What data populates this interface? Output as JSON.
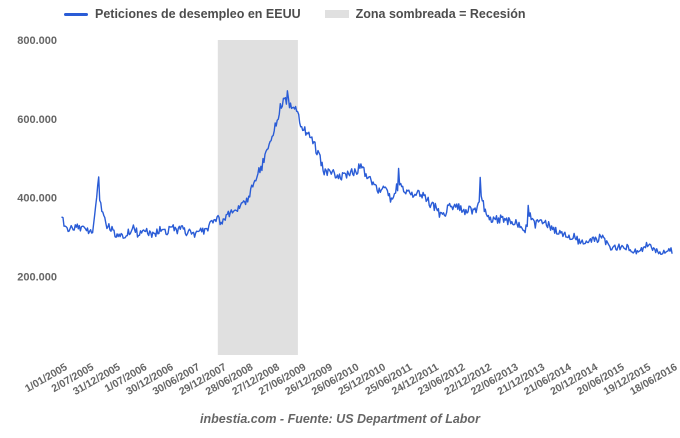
{
  "chart_data": {
    "type": "line",
    "title": "",
    "grid": "off",
    "legend_position": "top",
    "source": "inbestia.com - Fuente: US Department of Labor",
    "y_axis": {
      "min": 0,
      "max": 800000,
      "tick_values": [
        200000,
        400000,
        600000,
        800000
      ],
      "tick_labels": [
        "200.000",
        "400.000",
        "600.000",
        "800.000"
      ]
    },
    "x_axis": {
      "start_date": "1/01/2005",
      "end_date": "18/06/2016",
      "tick_interval_weeks": 26,
      "tick_labels": [
        "1/01/2005",
        "2/07/2005",
        "31/12/2005",
        "1/07/2006",
        "30/12/2006",
        "30/06/2007",
        "29/12/2007",
        "28/06/2008",
        "27/12/2008",
        "27/06/2009",
        "26/12/2009",
        "26/06/2010",
        "25/12/2010",
        "25/06/2011",
        "24/12/2011",
        "23/06/2012",
        "22/12/2012",
        "22/06/2013",
        "21/12/2013",
        "21/06/2014",
        "20/12/2014",
        "20/06/2015",
        "19/12/2015",
        "18/06/2016"
      ]
    },
    "recession_band": {
      "label": "Zona sombreada = Recesión",
      "color": "#e0e0e0",
      "from": "2007-12",
      "to": "2009-06"
    },
    "series": [
      {
        "name": "Peticiones de desempleo en EEUU",
        "color": "#2a5cd6",
        "frequency": "weekly (values estimated from monthly anchors read off plot)",
        "start_month": "2005-01",
        "end_month": "2016-06",
        "monthly_values_thousands": [
          350,
          318,
          322,
          328,
          322,
          318,
          318,
          312,
          425,
          362,
          330,
          322,
          302,
          300,
          306,
          312,
          325,
          308,
          318,
          314,
          304,
          308,
          318,
          312,
          316,
          328,
          312,
          328,
          304,
          314,
          306,
          320,
          314,
          327,
          336,
          345,
          332,
          352,
          368,
          368,
          372,
          386,
          404,
          440,
          462,
          482,
          522,
          556,
          582,
          632,
          655,
          640,
          625,
          612,
          580,
          562,
          545,
          525,
          495,
          462,
          468,
          462,
          455,
          452,
          460,
          466,
          462,
          482,
          462,
          452,
          436,
          420,
          428,
          412,
          394,
          424,
          428,
          422,
          408,
          410,
          418,
          404,
          394,
          380,
          374,
          356,
          360,
          382,
          374,
          378,
          364,
          370,
          368,
          364,
          410,
          368,
          348,
          344,
          344,
          348,
          340,
          344,
          334,
          328,
          310,
          358,
          330,
          338,
          332,
          334,
          320,
          314,
          310,
          310,
          296,
          300,
          290,
          286,
          290,
          294,
          290,
          304,
          286,
          276,
          274,
          276,
          270,
          274,
          270,
          264,
          270,
          276,
          284,
          264,
          265,
          256,
          270,
          264
        ]
      }
    ],
    "spikes_weekly": [
      {
        "week": 36,
        "thousands": 452
      },
      {
        "week": 221,
        "thousands": 671
      },
      {
        "week": 330,
        "thousands": 474
      },
      {
        "week": 410,
        "thousands": 451
      },
      {
        "week": 457,
        "thousands": 380
      }
    ],
    "noise_amplitude_thousands": 9
  }
}
